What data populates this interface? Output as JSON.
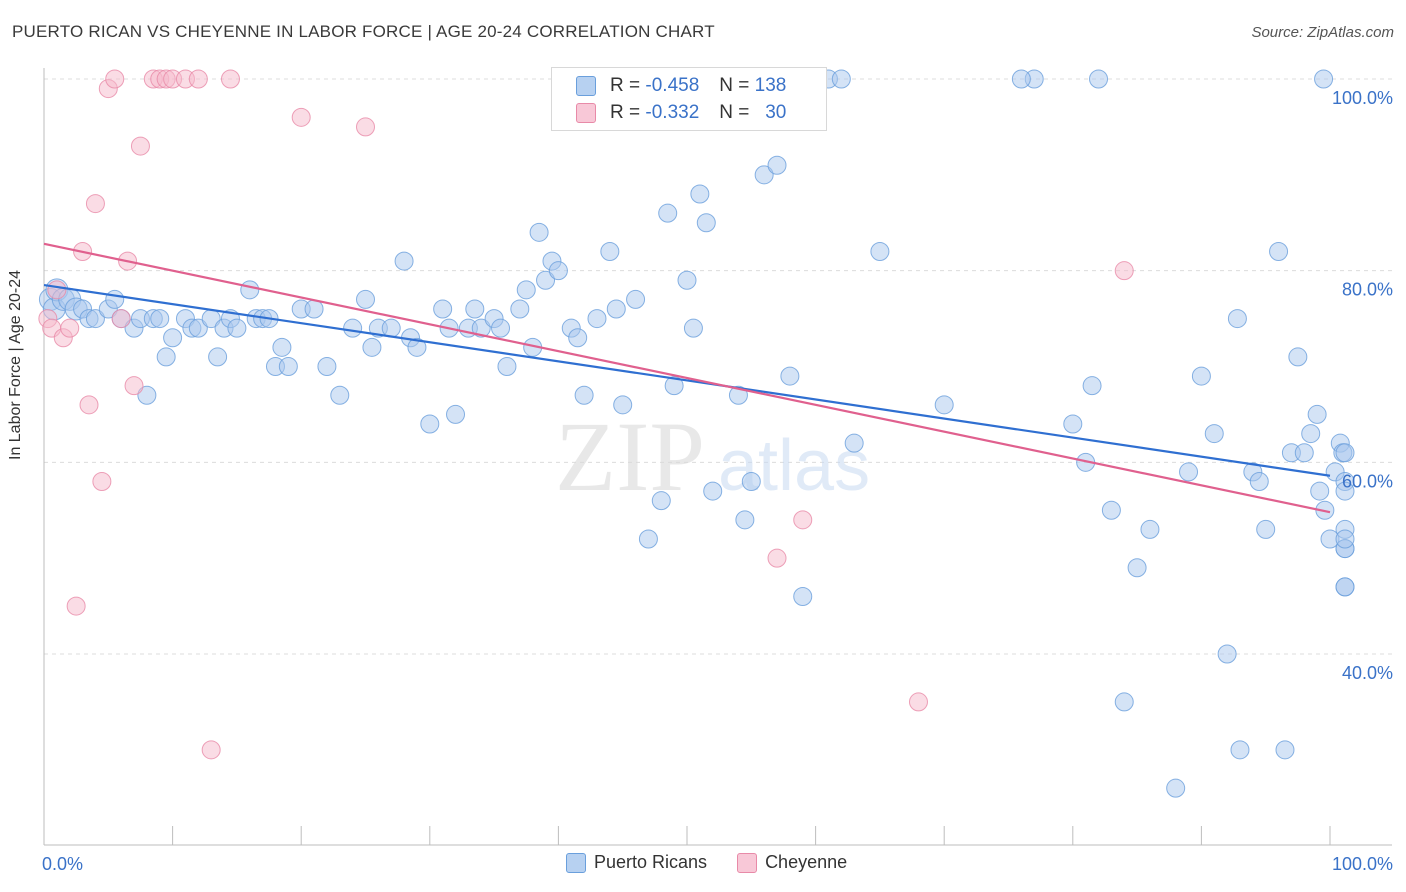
{
  "chart_data": {
    "type": "scatter",
    "title": "PUERTO RICAN VS CHEYENNE IN LABOR FORCE | AGE 20-24 CORRELATION CHART",
    "source": "Source: ZipAtlas.com",
    "ylabel": "In Labor Force | Age 20-24",
    "xlabel": "",
    "xlim": [
      0,
      100
    ],
    "ylim": [
      22,
      103
    ],
    "x_tick_labels": [
      "0.0%",
      "100.0%"
    ],
    "y_ticks": [
      {
        "value": 100,
        "label": "100.0%"
      },
      {
        "value": 80,
        "label": "80.0%"
      },
      {
        "value": 60,
        "label": "60.0%"
      },
      {
        "value": 40,
        "label": "40.0%"
      }
    ],
    "watermark": "ZIPatlas",
    "legend": {
      "r_label": "R =",
      "n_label": "N =",
      "entries": [
        {
          "name": "Puerto Ricans",
          "r": "-0.458",
          "n": "138",
          "color": "#a9c8ee"
        },
        {
          "name": "Cheyenne",
          "r": "-0.332",
          "n": "30",
          "color": "#f6b9cc"
        }
      ]
    },
    "series": [
      {
        "name": "Puerto Ricans",
        "color": "#a9c8ee",
        "stroke": "#6a9fdc",
        "trend": {
          "x": [
            0,
            100
          ],
          "y": [
            78.5,
            58.6
          ],
          "color": "#2f6fd1"
        },
        "points": [
          [
            0.5,
            77
          ],
          [
            0.8,
            76
          ],
          [
            1,
            78
          ],
          [
            1.5,
            77
          ],
          [
            2,
            77
          ],
          [
            2.5,
            76
          ],
          [
            3,
            76
          ],
          [
            3.5,
            75
          ],
          [
            4,
            75
          ],
          [
            5,
            76
          ],
          [
            5.5,
            77
          ],
          [
            6,
            75
          ],
          [
            7,
            74
          ],
          [
            7.5,
            75
          ],
          [
            8,
            67
          ],
          [
            8.5,
            75
          ],
          [
            9,
            75
          ],
          [
            9.5,
            71
          ],
          [
            10,
            73
          ],
          [
            11,
            75
          ],
          [
            11.5,
            74
          ],
          [
            12,
            74
          ],
          [
            13,
            75
          ],
          [
            13.5,
            71
          ],
          [
            14,
            74
          ],
          [
            14.5,
            75
          ],
          [
            15,
            74
          ],
          [
            16,
            78
          ],
          [
            16.5,
            75
          ],
          [
            17,
            75
          ],
          [
            17.5,
            75
          ],
          [
            18,
            70
          ],
          [
            18.5,
            72
          ],
          [
            19,
            70
          ],
          [
            20,
            76
          ],
          [
            21,
            76
          ],
          [
            22,
            70
          ],
          [
            23,
            67
          ],
          [
            24,
            74
          ],
          [
            25,
            77
          ],
          [
            25.5,
            72
          ],
          [
            26,
            74
          ],
          [
            27,
            74
          ],
          [
            28,
            81
          ],
          [
            28.5,
            73
          ],
          [
            29,
            72
          ],
          [
            30,
            64
          ],
          [
            31,
            76
          ],
          [
            31.5,
            74
          ],
          [
            32,
            65
          ],
          [
            33,
            74
          ],
          [
            33.5,
            76
          ],
          [
            34,
            74
          ],
          [
            35,
            75
          ],
          [
            35.5,
            74
          ],
          [
            36,
            70
          ],
          [
            37,
            76
          ],
          [
            37.5,
            78
          ],
          [
            38,
            72
          ],
          [
            38.5,
            84
          ],
          [
            39,
            79
          ],
          [
            39.5,
            81
          ],
          [
            40,
            80
          ],
          [
            41,
            74
          ],
          [
            41.5,
            73
          ],
          [
            42,
            67
          ],
          [
            43,
            75
          ],
          [
            44,
            82
          ],
          [
            44.5,
            76
          ],
          [
            45,
            66
          ],
          [
            46,
            77
          ],
          [
            47,
            52
          ],
          [
            48,
            56
          ],
          [
            48.5,
            86
          ],
          [
            49,
            68
          ],
          [
            50,
            79
          ],
          [
            50.5,
            74
          ],
          [
            51,
            88
          ],
          [
            51.5,
            85
          ],
          [
            52,
            57
          ],
          [
            53,
            100
          ],
          [
            54,
            67
          ],
          [
            54.5,
            54
          ],
          [
            55,
            58
          ],
          [
            56,
            90
          ],
          [
            56.5,
            100
          ],
          [
            57,
            91
          ],
          [
            58,
            69
          ],
          [
            59,
            46
          ],
          [
            60,
            100
          ],
          [
            61,
            100
          ],
          [
            62,
            100
          ],
          [
            65,
            82
          ],
          [
            70,
            66
          ],
          [
            77,
            100
          ],
          [
            80,
            64
          ],
          [
            81,
            60
          ],
          [
            81.5,
            68
          ],
          [
            82,
            100
          ],
          [
            83,
            55
          ],
          [
            84,
            35
          ],
          [
            85,
            49
          ],
          [
            86,
            53
          ],
          [
            88,
            26
          ],
          [
            89,
            59
          ],
          [
            90,
            69
          ],
          [
            91,
            63
          ],
          [
            92,
            40
          ],
          [
            93,
            30
          ],
          [
            94,
            59
          ],
          [
            94.5,
            58
          ],
          [
            95,
            53
          ],
          [
            96,
            82
          ],
          [
            96.5,
            30
          ],
          [
            97,
            61
          ],
          [
            97.5,
            71
          ],
          [
            98,
            61
          ],
          [
            98.5,
            63
          ],
          [
            99,
            65
          ],
          [
            99.5,
            100
          ],
          [
            99.2,
            57
          ],
          [
            99.6,
            55
          ],
          [
            100,
            52
          ],
          [
            100.4,
            59
          ],
          [
            100.8,
            62
          ],
          [
            101,
            61
          ],
          [
            101.4,
            58
          ],
          [
            102,
            57
          ],
          [
            102.5,
            53
          ],
          [
            103,
            51
          ],
          [
            103.4,
            47
          ],
          [
            103.8,
            47
          ],
          [
            104,
            51
          ],
          [
            104.4,
            52
          ],
          [
            105,
            61
          ],
          [
            92.8,
            75
          ],
          [
            76,
            100
          ],
          [
            63,
            62
          ]
        ]
      },
      {
        "name": "Cheyenne",
        "color": "#f6b9cc",
        "stroke": "#e88aa8",
        "trend": {
          "x": [
            0,
            100
          ],
          "y": [
            82.8,
            54.8
          ],
          "color": "#e0608e"
        },
        "points": [
          [
            0.3,
            75
          ],
          [
            0.6,
            74
          ],
          [
            1,
            78
          ],
          [
            1.5,
            73
          ],
          [
            2,
            74
          ],
          [
            2.5,
            45
          ],
          [
            3,
            82
          ],
          [
            3.5,
            66
          ],
          [
            4,
            87
          ],
          [
            4.5,
            58
          ],
          [
            5,
            99
          ],
          [
            5.5,
            100
          ],
          [
            6,
            75
          ],
          [
            6.5,
            81
          ],
          [
            7,
            68
          ],
          [
            7.5,
            93
          ],
          [
            8.5,
            100
          ],
          [
            9,
            100
          ],
          [
            9.5,
            100
          ],
          [
            10,
            100
          ],
          [
            11,
            100
          ],
          [
            12,
            100
          ],
          [
            13,
            30
          ],
          [
            14.5,
            100
          ],
          [
            20,
            96
          ],
          [
            25,
            95
          ],
          [
            57,
            50
          ],
          [
            59,
            54
          ],
          [
            68,
            35
          ],
          [
            84,
            80
          ]
        ]
      }
    ]
  }
}
